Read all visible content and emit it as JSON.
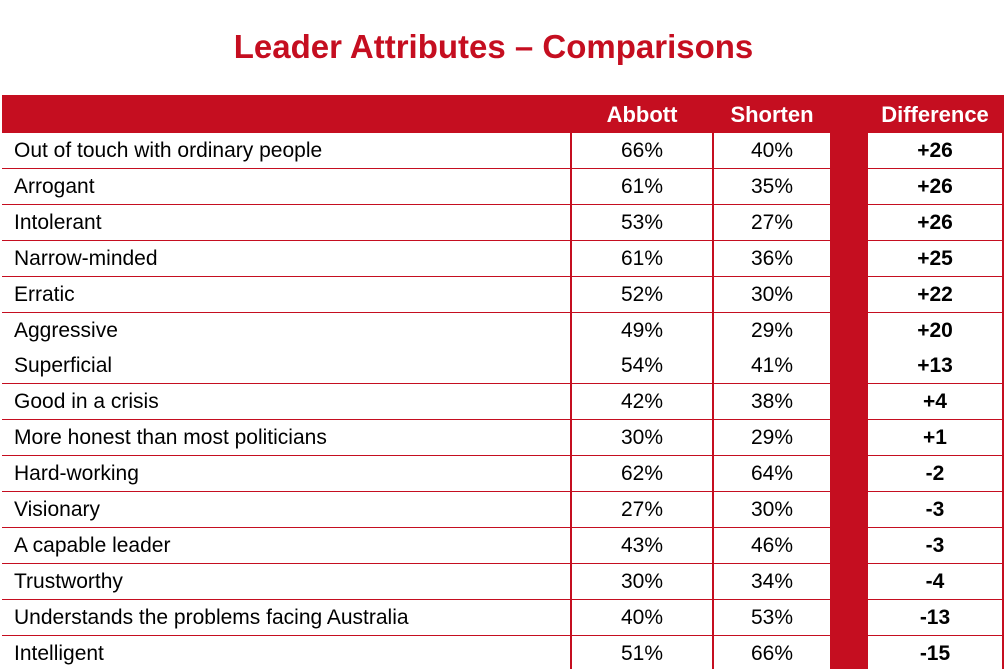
{
  "title": "Leader Attributes – Comparisons",
  "headers": {
    "label": "",
    "abbott": "Abbott",
    "shorten": "Shorten",
    "difference": "Difference"
  },
  "rows": [
    {
      "label": "Out of touch with ordinary people",
      "abbott": "66%",
      "shorten": "40%",
      "difference": "+26"
    },
    {
      "label": "Arrogant",
      "abbott": "61%",
      "shorten": "35%",
      "difference": "+26"
    },
    {
      "label": "Intolerant",
      "abbott": "53%",
      "shorten": "27%",
      "difference": "+26"
    },
    {
      "label": "Narrow-minded",
      "abbott": "61%",
      "shorten": "36%",
      "difference": "+25"
    },
    {
      "label": "Erratic",
      "abbott": "52%",
      "shorten": "30%",
      "difference": "+22"
    },
    {
      "label": "Aggressive",
      "abbott": "49%",
      "shorten": "29%",
      "difference": "+20"
    },
    {
      "label": "Superficial",
      "abbott": "54%",
      "shorten": "41%",
      "difference": "+13"
    },
    {
      "label": "Good in a crisis",
      "abbott": "42%",
      "shorten": "38%",
      "difference": "+4"
    },
    {
      "label": "More honest than most politicians",
      "abbott": "30%",
      "shorten": "29%",
      "difference": "+1"
    },
    {
      "label": "Hard-working",
      "abbott": "62%",
      "shorten": "64%",
      "difference": "-2"
    },
    {
      "label": "Visionary",
      "abbott": "27%",
      "shorten": "30%",
      "difference": "-3"
    },
    {
      "label": "A capable leader",
      "abbott": "43%",
      "shorten": "46%",
      "difference": "-3"
    },
    {
      "label": "Trustworthy",
      "abbott": "30%",
      "shorten": "34%",
      "difference": "-4"
    },
    {
      "label": "Understands the problems facing Australia",
      "abbott": "40%",
      "shorten": "53%",
      "difference": "-13"
    },
    {
      "label": "Intelligent",
      "abbott": "51%",
      "shorten": "66%",
      "difference": "-15"
    }
  ],
  "colors": {
    "accent": "#c50e20",
    "header_text": "#ffffff",
    "cell_background": "#ffffff"
  },
  "chart_data": {
    "type": "table",
    "title": "Leader Attributes – Comparisons",
    "columns": [
      "Abbott",
      "Shorten",
      "Difference"
    ],
    "categories": [
      "Out of touch with ordinary people",
      "Arrogant",
      "Intolerant",
      "Narrow-minded",
      "Erratic",
      "Aggressive",
      "Superficial",
      "Good in a crisis",
      "More honest than most politicians",
      "Hard-working",
      "Visionary",
      "A capable leader",
      "Trustworthy",
      "Understands the problems facing Australia",
      "Intelligent"
    ],
    "series": [
      {
        "name": "Abbott",
        "values": [
          66,
          61,
          53,
          61,
          52,
          49,
          54,
          42,
          30,
          62,
          27,
          43,
          30,
          40,
          51
        ]
      },
      {
        "name": "Shorten",
        "values": [
          40,
          35,
          27,
          36,
          30,
          29,
          41,
          38,
          29,
          64,
          30,
          46,
          34,
          53,
          66
        ]
      },
      {
        "name": "Difference",
        "values": [
          26,
          26,
          26,
          25,
          22,
          20,
          13,
          4,
          1,
          -2,
          -3,
          -3,
          -4,
          -13,
          -15
        ]
      }
    ]
  }
}
